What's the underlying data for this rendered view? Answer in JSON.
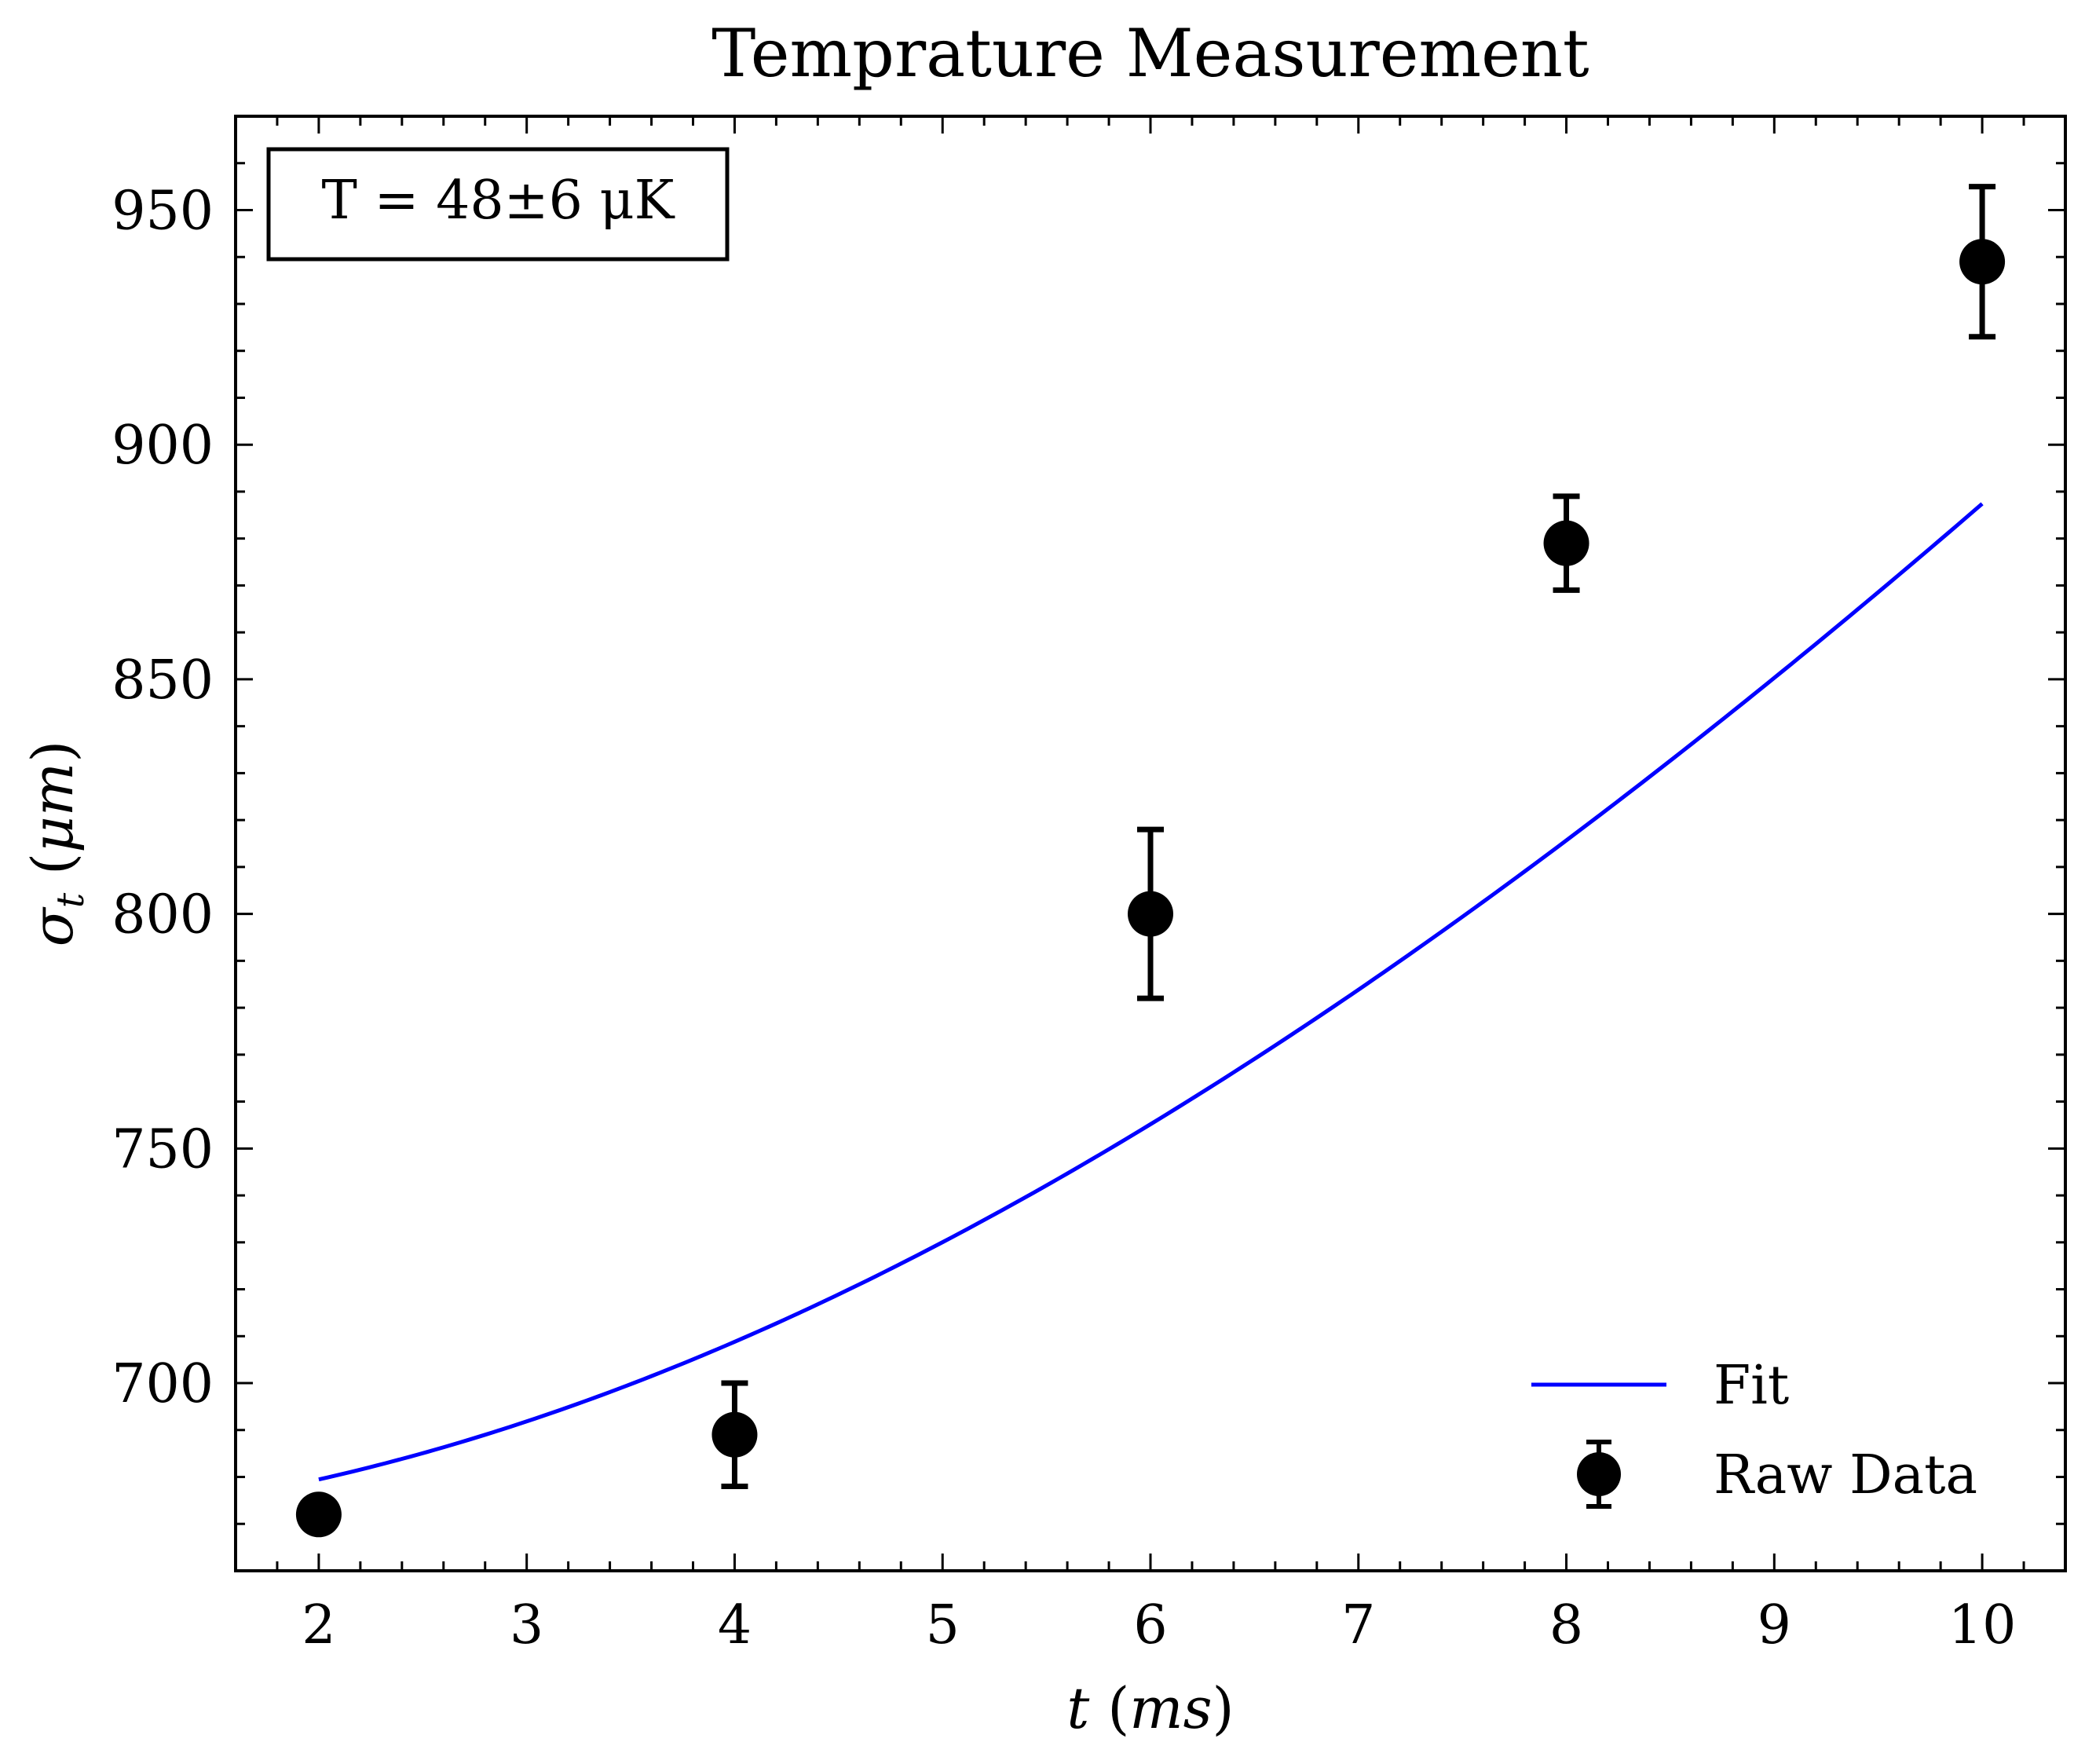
{
  "chart_data": {
    "type": "scatter",
    "title": "Temprature Measurement",
    "xlabel": "t (ms)",
    "ylabel": "σ_t (μm)",
    "xlim": [
      1.6,
      10.4
    ],
    "ylim": [
      660,
      970
    ],
    "x_ticks": [
      2,
      3,
      4,
      5,
      6,
      7,
      8,
      9,
      10
    ],
    "y_ticks": [
      700,
      750,
      800,
      850,
      900,
      950
    ],
    "grid": false,
    "legend_position": "bottom-right",
    "annotation": "T = 48±6 μK",
    "series": [
      {
        "name": "Raw Data",
        "kind": "errorbar",
        "color": "#000000",
        "x": [
          2,
          4,
          6,
          8,
          10
        ],
        "y": [
          672,
          689,
          800,
          879,
          939
        ],
        "yerr": [
          0,
          11,
          18,
          10,
          16
        ]
      },
      {
        "name": "Fit",
        "kind": "line",
        "color": "#0000ff",
        "model": "sqrt(a + b*t^2)",
        "params": {
          "a": 448100,
          "b": 3394
        }
      }
    ]
  }
}
